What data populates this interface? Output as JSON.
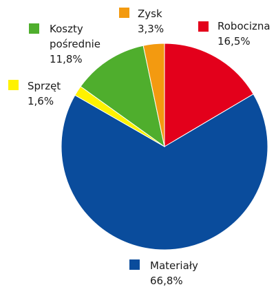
{
  "chart_data": {
    "type": "pie",
    "categories": [
      "Robocizna",
      "Materiały",
      "Sprzęt",
      "Koszty pośrednie",
      "Zysk"
    ],
    "values": [
      16.5,
      66.8,
      1.6,
      11.8,
      3.3
    ],
    "value_labels": [
      "16,5%",
      "66,8%",
      "1,6%",
      "11,8%",
      "3,3%"
    ],
    "colors": [
      "#e3001b",
      "#0a4c9c",
      "#fff200",
      "#4fae2d",
      "#f39a10"
    ]
  }
}
